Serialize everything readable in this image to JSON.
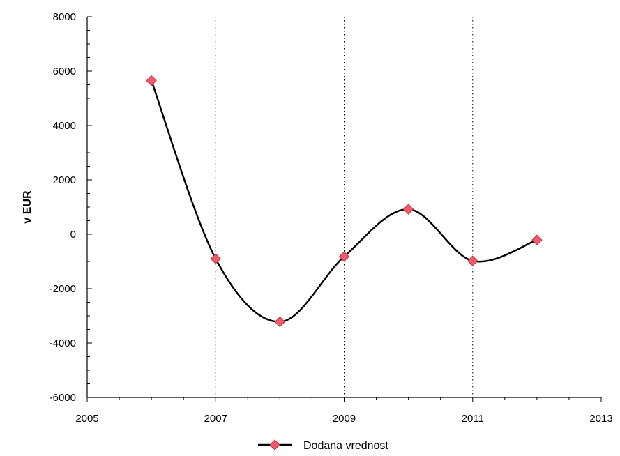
{
  "chart_data": {
    "type": "line",
    "title": "",
    "xlabel": "",
    "ylabel": "v EUR",
    "xlim": [
      2005,
      2013
    ],
    "ylim": [
      -6000,
      8000
    ],
    "x_ticks": [
      2005,
      2007,
      2009,
      2011,
      2013
    ],
    "y_ticks": [
      8000,
      6000,
      4000,
      2000,
      0,
      -2000,
      -4000,
      -6000
    ],
    "vertical_gridlines": [
      2007,
      2009,
      2011
    ],
    "grid": "vertical dotted",
    "legend_position": "bottom-center",
    "series": [
      {
        "name": "Dodana vrednost",
        "color": "#000000",
        "marker_color": "#f25c6a",
        "marker": "diamond",
        "smooth": true,
        "x": [
          2006,
          2007,
          2008,
          2009,
          2010,
          2011,
          2012
        ],
        "values": [
          5650,
          -900,
          -3220,
          -820,
          920,
          -980,
          -210
        ]
      }
    ]
  }
}
